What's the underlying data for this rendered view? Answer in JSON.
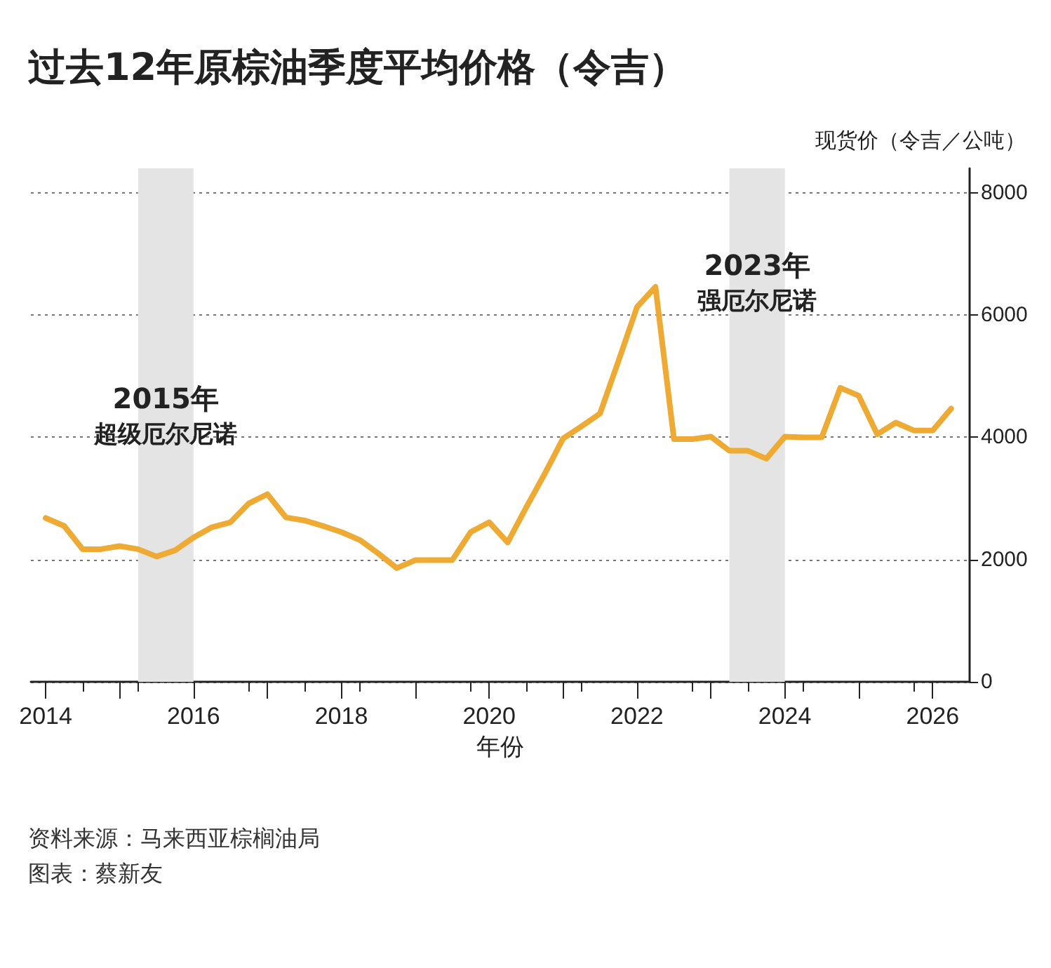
{
  "chart_data": {
    "type": "line",
    "title": "过去12年原棕油季度平均价格（令吉）",
    "xlabel": "年份",
    "ylabel": "现货价（令吉／公吨）",
    "annotations": [
      "资料来源：马来西亚棕榈油局",
      "图表：蔡新友"
    ],
    "x": [
      2014,
      2014.25,
      2014.5,
      2014.75,
      2015,
      2015.25,
      2015.5,
      2015.75,
      2016,
      2016.25,
      2016.5,
      2016.75,
      2017,
      2017.25,
      2017.5,
      2017.75,
      2018,
      2018.25,
      2018.5,
      2018.75,
      2019,
      2019.25,
      2019.5,
      2019.75,
      2020,
      2020.25,
      2020.5,
      2020.75,
      2021,
      2021.25,
      2021.5,
      2021.75,
      2022,
      2022.25,
      2022.5,
      2022.75,
      2023,
      2023.25,
      2023.5,
      2023.75,
      2024,
      2024.25,
      2024.5,
      2024.75,
      2025,
      2025.25,
      2025.5,
      2025.75,
      2026,
      2026.25
    ],
    "series": [
      {
        "color": "#eeaa33",
        "values": [
          2680,
          2550,
          2170,
          2170,
          2220,
          2170,
          2050,
          2150,
          2360,
          2530,
          2610,
          2920,
          3070,
          2690,
          2640,
          2550,
          2450,
          2320,
          2100,
          1860,
          1990,
          1990,
          1990,
          2450,
          2610,
          2280,
          2850,
          3400,
          3980,
          4180,
          4390,
          5250,
          6130,
          6460,
          3970,
          3970,
          4010,
          3780,
          3780,
          3650,
          4010,
          4000,
          4000,
          4810,
          4680,
          4050,
          4240,
          4110,
          4110,
          4470
        ]
      }
    ],
    "xlim": [
      2013.8,
      2026.5
    ],
    "xticks": [
      2014,
      {
        "value": 2015,
        "label": null
      },
      2016,
      {
        "value": 2017,
        "label": null
      },
      2018,
      {
        "value": 2019,
        "label": null
      },
      2020,
      {
        "value": 2021,
        "label": null
      },
      2022,
      {
        "value": 2023,
        "label": null
      },
      2024,
      {
        "value": 2025,
        "label": null
      },
      2026
    ],
    "ylim": [
      0,
      8400
    ],
    "yticks": [
      0,
      2000,
      4000,
      6000,
      8000
    ],
    "grid": "y",
    "marker": "none",
    "line_style": "solid",
    "bands": [
      {
        "axis": "x",
        "from": 2015.25,
        "to": 2016,
        "label": "2015年超级厄尔尼诺",
        "color": "#e4e4e4"
      },
      {
        "axis": "x",
        "from": 2023.25,
        "to": 2024,
        "label": "2023年强厄尔尼诺",
        "color": "#e4e4e4"
      }
    ]
  }
}
